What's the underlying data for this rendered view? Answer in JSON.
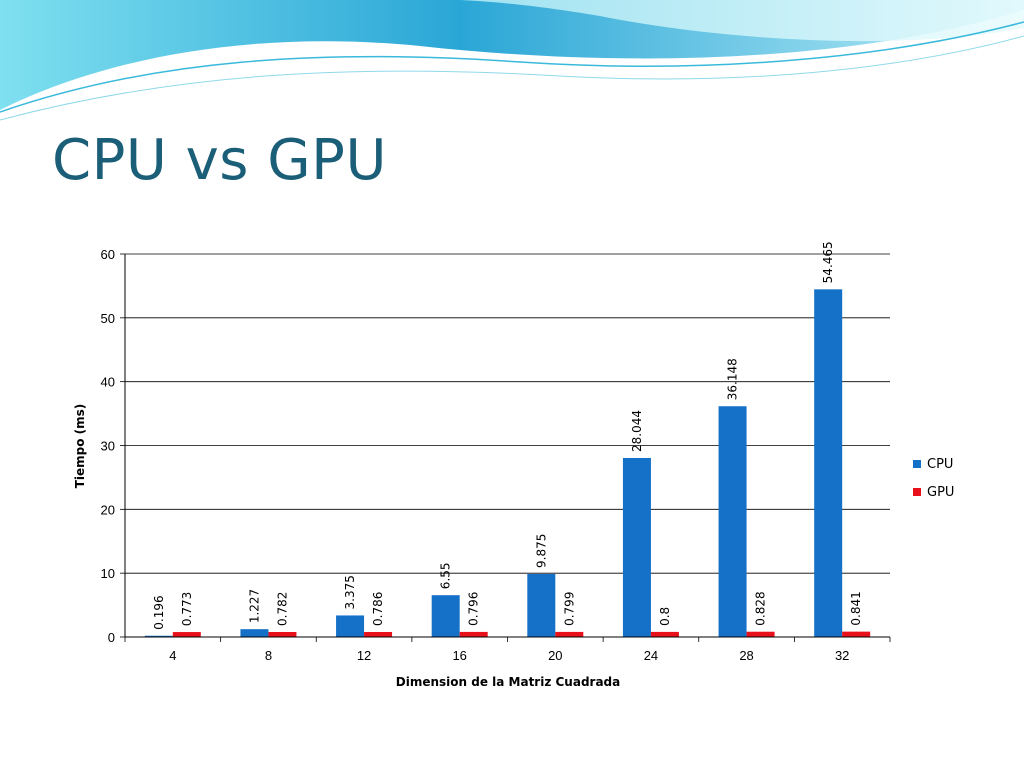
{
  "slide": {
    "title": "CPU vs GPU"
  },
  "colors": {
    "cpu": "#1570c8",
    "gpu": "#e8101a",
    "title": "#1b5e78",
    "banner": "#5ad0e6"
  },
  "chart_data": {
    "type": "bar",
    "title": "",
    "xlabel": "Dimension de la Matriz Cuadrada",
    "ylabel": "Tiempo (ms)",
    "categories": [
      "4",
      "8",
      "12",
      "16",
      "20",
      "24",
      "28",
      "32"
    ],
    "series": [
      {
        "name": "CPU",
        "values": [
          0.196,
          1.227,
          3.375,
          6.55,
          9.875,
          28.044,
          36.148,
          54.465
        ],
        "labels": [
          "0.196",
          "1.227",
          "3.375",
          "6.55",
          "9.875",
          "28.044",
          "36.148",
          "54.465"
        ]
      },
      {
        "name": "GPU",
        "values": [
          0.773,
          0.782,
          0.786,
          0.796,
          0.799,
          0.8,
          0.828,
          0.841
        ],
        "labels": [
          "0.773",
          "0.782",
          "0.786",
          "0.796",
          "0.799",
          "0.8",
          "0.828",
          "0.841"
        ]
      }
    ],
    "ylim": [
      0,
      60
    ],
    "yticks": [
      0,
      10,
      20,
      30,
      40,
      50,
      60
    ],
    "ytick_labels": [
      "0",
      "10",
      "20",
      "30",
      "40",
      "50",
      "60"
    ],
    "grid": true,
    "legend": "right"
  }
}
